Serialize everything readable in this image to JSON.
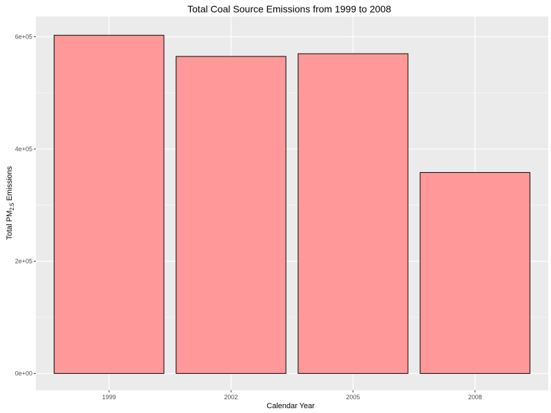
{
  "chart_data": {
    "type": "bar",
    "title": "Total Coal Source Emissions from 1999 to 2008",
    "xlabel": "Calendar Year",
    "ylabel": {
      "prefix": "Total PM",
      "subscript": "2.5",
      "suffix": " Emissions"
    },
    "categories": [
      "1999",
      "2002",
      "2005",
      "2008"
    ],
    "values": [
      602600,
      564900,
      569700,
      358100
    ],
    "ylim": [
      0,
      636000
    ],
    "y_ticks": [
      {
        "value": 0,
        "label": "0e+00"
      },
      {
        "value": 200000,
        "label": "2e+05"
      },
      {
        "value": 400000,
        "label": "4e+05"
      },
      {
        "value": 600000,
        "label": "6e+05"
      }
    ],
    "grid": true,
    "legend": "none",
    "colors": {
      "bar_fill": "#ff9999",
      "bar_stroke": "#000000",
      "panel": "#ebebeb",
      "grid": "#ffffff"
    }
  }
}
